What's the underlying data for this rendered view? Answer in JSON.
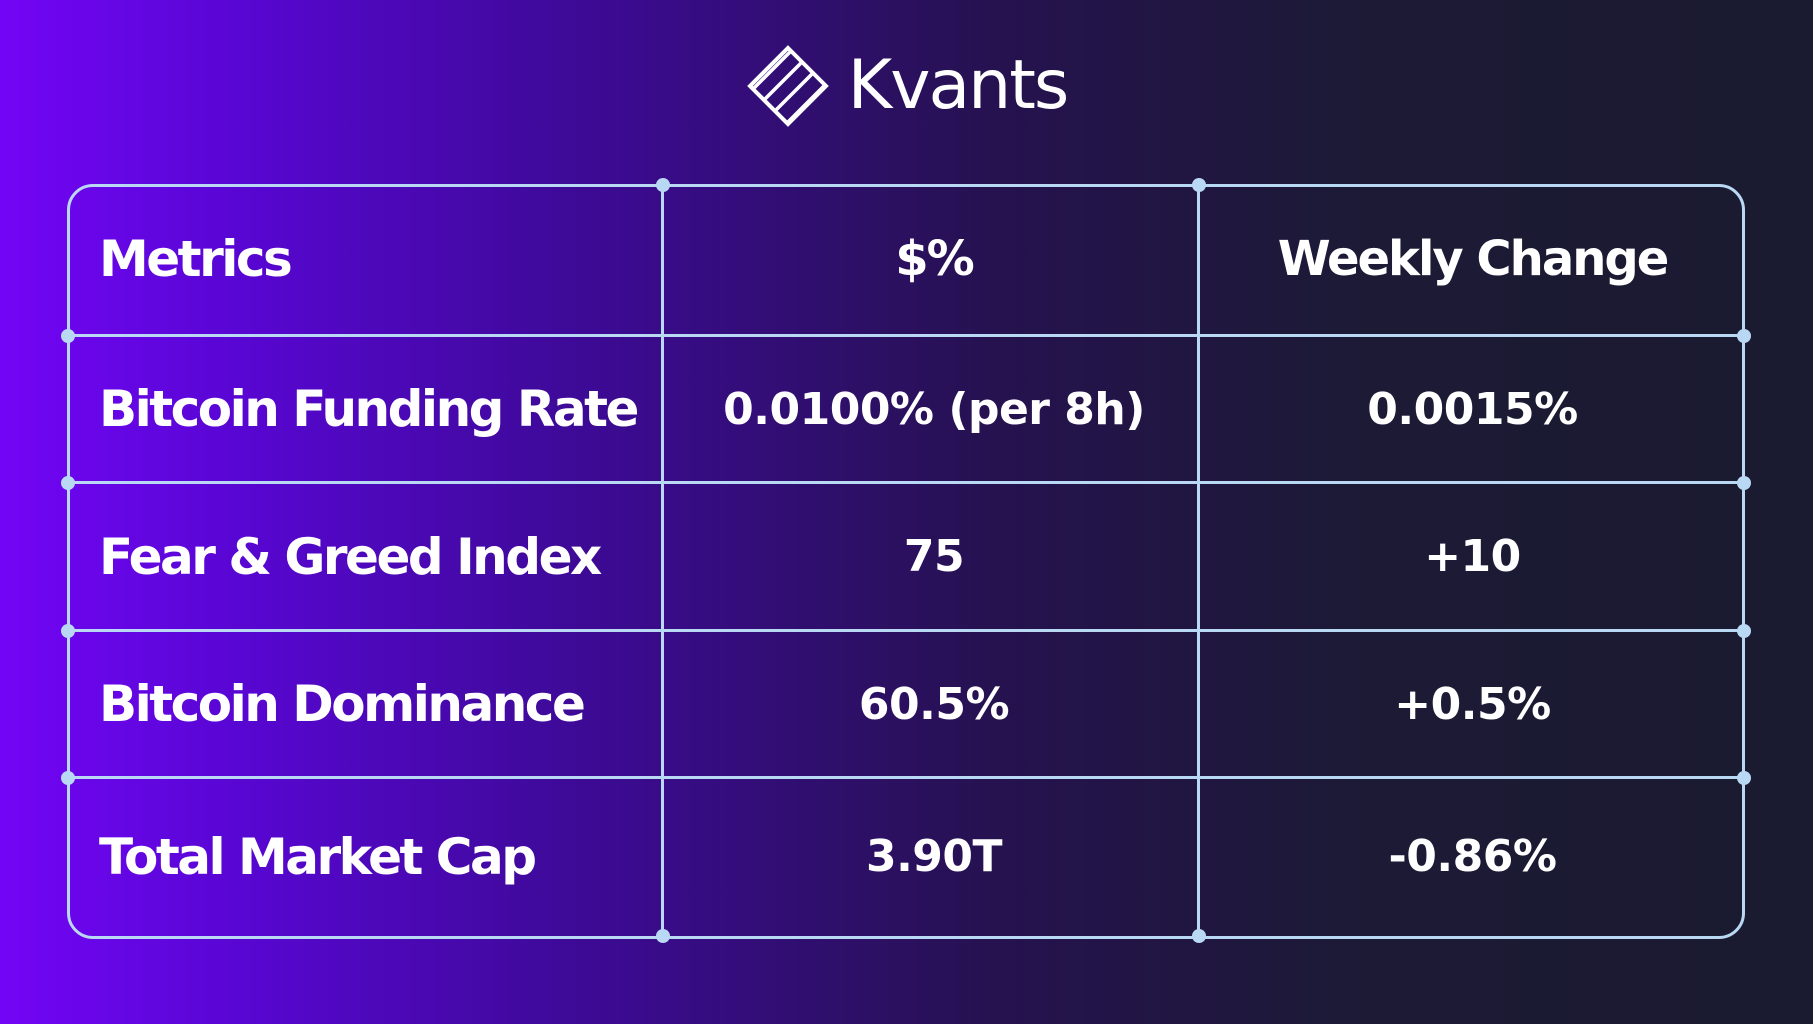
{
  "brand": {
    "name": "Kvants",
    "logo_icon": "diamond-stripes-icon"
  },
  "table": {
    "headers": [
      "Metrics",
      "$%",
      "Weekly Change"
    ],
    "rows": [
      {
        "metric": "Bitcoin Funding Rate",
        "value": "0.0100% (per 8h)",
        "change": "0.0015%"
      },
      {
        "metric": "Fear & Greed Index",
        "value": "75",
        "change": "+10"
      },
      {
        "metric": "Bitcoin Dominance",
        "value": "60.5%",
        "change": "+0.5%"
      },
      {
        "metric": "Total Market Cap",
        "value": "3.90T",
        "change": "-0.86%"
      }
    ]
  },
  "colors": {
    "background_left": "#7305f6",
    "background_right": "#1a1a30",
    "grid_lines": "#b9d8f4",
    "text": "#ffffff"
  }
}
